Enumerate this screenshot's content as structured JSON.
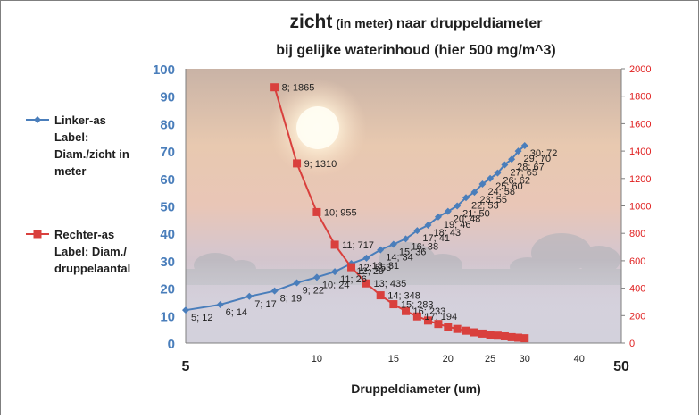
{
  "chart_data": {
    "type": "line",
    "title_main": "zicht",
    "title_unit": " (in meter) ",
    "title_rest": "naar druppeldiameter",
    "subtitle": "bij gelijke waterinhoud (hier 500 mg/m^3)",
    "xlabel": "Druppeldiameter (um)",
    "x_scale": "log",
    "xlim": [
      5,
      50
    ],
    "x_ticks": [
      5,
      10,
      15,
      20,
      25,
      30,
      40,
      50
    ],
    "ylim_left": [
      0,
      100
    ],
    "y_ticks_left": [
      0,
      10,
      20,
      30,
      40,
      50,
      60,
      70,
      80,
      90,
      100
    ],
    "ylim_right": [
      0,
      2000
    ],
    "y_ticks_right": [
      0,
      200,
      400,
      600,
      800,
      1000,
      1200,
      1400,
      1600,
      1800,
      2000
    ],
    "grid": false,
    "legend_position": "left",
    "series": [
      {
        "name": "Linker-as Label: Diam./zicht in meter",
        "legend_lines": [
          "Linker-as",
          "Label:",
          "Diam./zicht in",
          "meter"
        ],
        "axis": "left",
        "color": "#4a7ebb",
        "marker": "diamond",
        "x": [
          5,
          6,
          7,
          8,
          9,
          10,
          11,
          12,
          13,
          14,
          15,
          16,
          17,
          18,
          19,
          20,
          21,
          22,
          23,
          24,
          25,
          26,
          27,
          28,
          29,
          30
        ],
        "y": [
          12,
          14,
          17,
          19,
          22,
          24,
          26,
          29,
          31,
          34,
          36,
          38,
          41,
          43,
          46,
          48,
          50,
          53,
          55,
          58,
          60,
          62,
          65,
          67,
          70,
          72
        ],
        "labels_shown": [
          {
            "x": 5,
            "text": "5; 12"
          },
          {
            "x": 6,
            "text": "6; 14"
          },
          {
            "x": 7,
            "text": "7; 17"
          },
          {
            "x": 8,
            "text": "8; 19"
          },
          {
            "x": 9,
            "text": "9; 22"
          },
          {
            "x": 10,
            "text": "10; 24"
          },
          {
            "x": 11,
            "text": "11; 26"
          },
          {
            "x": 12,
            "text": "12; 29"
          },
          {
            "x": 13,
            "text": "13; 31"
          },
          {
            "x": 14,
            "text": "14; 34"
          },
          {
            "x": 15,
            "text": "15; 36"
          },
          {
            "x": 16,
            "text": "16; 38"
          },
          {
            "x": 17,
            "text": "17; 41"
          },
          {
            "x": 18,
            "text": "18; 43"
          },
          {
            "x": 19,
            "text": "19; 46"
          },
          {
            "x": 20,
            "text": "20; 48"
          },
          {
            "x": 21,
            "text": "21; 50"
          },
          {
            "x": 22,
            "text": "22; 53"
          },
          {
            "x": 23,
            "text": "23; 55"
          },
          {
            "x": 24,
            "text": "24; 58"
          },
          {
            "x": 25,
            "text": "25; 60"
          },
          {
            "x": 26,
            "text": "26; 62"
          },
          {
            "x": 27,
            "text": "27; 65"
          },
          {
            "x": 28,
            "text": "28; 67"
          },
          {
            "x": 29,
            "text": "29; 70"
          },
          {
            "x": 30,
            "text": "30; 72"
          }
        ]
      },
      {
        "name": "Rechter-as Label: Diam./druppelaantal",
        "legend_lines": [
          "Rechter-as",
          "Label: Diam./",
          "druppelaantal"
        ],
        "axis": "right",
        "color": "#d9403d",
        "marker": "square",
        "x": [
          8,
          9,
          10,
          11,
          12,
          13,
          14,
          15,
          16,
          17,
          18,
          19,
          20,
          21,
          22,
          23,
          24,
          25,
          26,
          27,
          28,
          29,
          30
        ],
        "y": [
          1865,
          1310,
          955,
          717,
          553,
          435,
          348,
          283,
          233,
          194,
          164,
          139,
          119,
          103,
          90,
          78,
          69,
          61,
          54,
          49,
          43,
          39,
          35
        ],
        "labels_shown": [
          {
            "x": 8,
            "text": "8; 1865"
          },
          {
            "x": 9,
            "text": "9; 1310"
          },
          {
            "x": 10,
            "text": "10; 955"
          },
          {
            "x": 11,
            "text": "11; 717"
          },
          {
            "x": 12,
            "text": "12; 553"
          },
          {
            "x": 13,
            "text": "13; 435"
          },
          {
            "x": 14,
            "text": "14; 348"
          },
          {
            "x": 15,
            "text": "15; 283"
          },
          {
            "x": 16,
            "text": "16; 233"
          },
          {
            "x": 17,
            "text": "17; 194"
          }
        ]
      }
    ]
  }
}
